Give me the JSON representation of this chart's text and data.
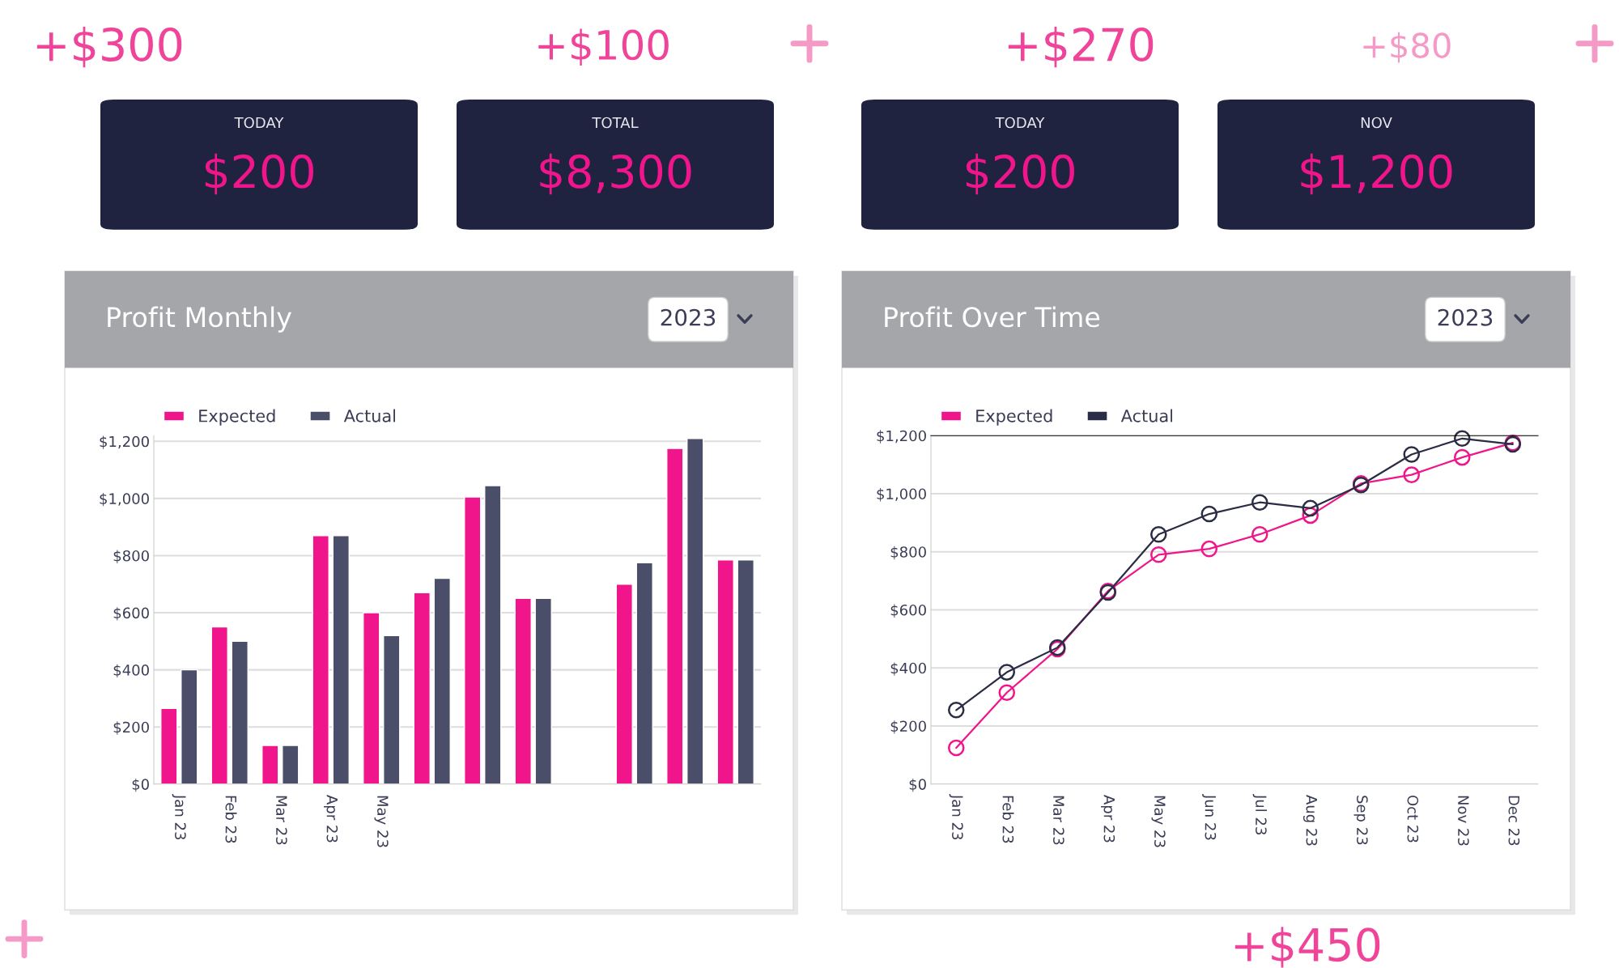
{
  "chart_data": [
    {
      "type": "other",
      "annotations": [
        "+$300",
        "+$270",
        "+$100",
        "+$80",
        "+$450"
      ]
    },
    {
      "type": "other",
      "title": "TODAY",
      "annotations": [
        "$200"
      ]
    },
    {
      "type": "other",
      "title": "TOTAL",
      "annotations": [
        "$8,300"
      ]
    },
    {
      "type": "bar",
      "title": "Profit Monthly",
      "subtitle": "2023",
      "categories": [
        "Jan 23",
        "Feb 23",
        "Mar 23",
        "Apr 23",
        "May 23",
        null,
        null,
        null,
        null,
        null,
        null,
        null
      ],
      "series": [
        {
          "name": "Expected",
          "color": "#f0158a",
          "values": [
            265,
            550,
            135,
            870,
            600,
            670,
            1005,
            650,
            null,
            700,
            1175,
            785
          ]
        },
        {
          "name": "Actual",
          "color": "#4a4e69",
          "values": [
            400,
            500,
            135,
            870,
            520,
            720,
            1045,
            650,
            null,
            775,
            1210,
            785
          ]
        }
      ],
      "ylim": [
        0,
        1220
      ],
      "yticks": [
        {
          "value": 0,
          "label": "$0"
        },
        {
          "value": 200,
          "label": "$200"
        },
        {
          "value": 400,
          "label": "$400"
        },
        {
          "value": 600,
          "label": "$600"
        },
        {
          "value": 800,
          "label": "$800"
        },
        {
          "value": 1000,
          "label": "$1,000"
        },
        {
          "value": 1200,
          "label": "$1,200"
        }
      ],
      "grid": "y",
      "legend": "top left"
    },
    {
      "type": "other",
      "title": "TODAY",
      "annotations": [
        "$200"
      ]
    },
    {
      "type": "other",
      "title": "NOV",
      "annotations": [
        "$1,200"
      ]
    },
    {
      "type": "line",
      "title": "Profit Over Time",
      "subtitle": "2023",
      "categories": [
        "Jan 23",
        "Feb 23",
        "Mar 23",
        "Apr 23",
        "May 23",
        "Jun 23",
        "Jul 23",
        "Aug 23",
        "Sep 23",
        "Oct 23",
        "Nov 23",
        "Dec 23"
      ],
      "series": [
        {
          "name": "Expected",
          "color": "#f0158a",
          "values": [
            125,
            315,
            465,
            665,
            790,
            810,
            860,
            925,
            1035,
            1065,
            1125,
            1175
          ]
        },
        {
          "name": "Actual",
          "color": "#2a2d45",
          "values": [
            255,
            385,
            470,
            660,
            860,
            930,
            970,
            950,
            1030,
            1135,
            1190,
            1170
          ]
        }
      ],
      "ylim": [
        0,
        1200
      ],
      "yticks": [
        {
          "value": 0,
          "label": "$0"
        },
        {
          "value": 200,
          "label": "$200"
        },
        {
          "value": 400,
          "label": "$400"
        },
        {
          "value": 600,
          "label": "$600"
        },
        {
          "value": 800,
          "label": "$800"
        },
        {
          "value": 1000,
          "label": "$1,000"
        },
        {
          "value": 1200,
          "label": "$1,200"
        }
      ],
      "grid": "y",
      "legend": "top left",
      "marker": "circle",
      "line_style": "solid"
    }
  ]
}
